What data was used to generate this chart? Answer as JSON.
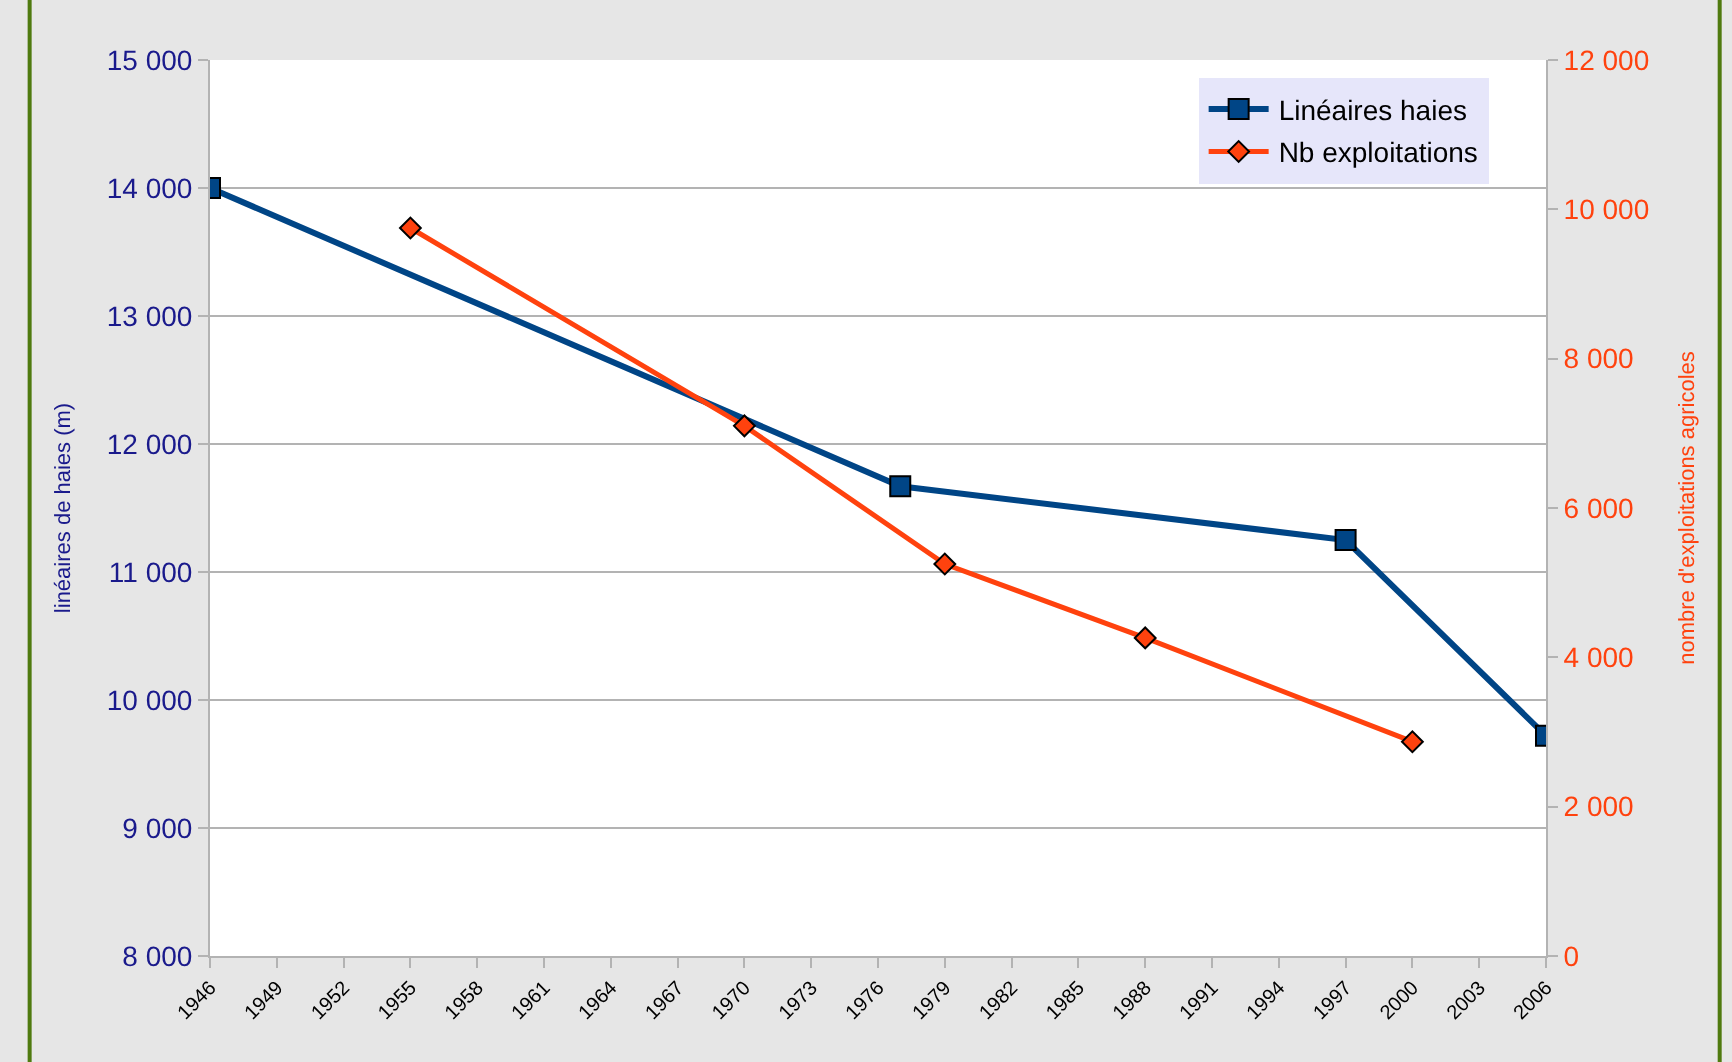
{
  "chart_data": {
    "type": "line",
    "ylabel": "linéaires de haies (m)",
    "y2label": "nombre d'exploitations agricoles",
    "series": [
      {
        "name": "Linéaires haies",
        "color": "#004586",
        "marker": "square",
        "x": [
          1946,
          1977,
          1997,
          2006
        ],
        "values": [
          14000,
          11670,
          11250,
          9720
        ]
      },
      {
        "name": "Nb exploitations",
        "color": "#ff420e",
        "marker": "diamond",
        "axis": "y2",
        "x": [
          1955,
          1970,
          1979,
          1988,
          2000
        ],
        "values": [
          9750,
          7100,
          5250,
          4260,
          2870
        ]
      }
    ],
    "xlim": [
      1946,
      2006
    ],
    "xticks": [
      1946,
      1949,
      1952,
      1955,
      1958,
      1961,
      1964,
      1967,
      1970,
      1973,
      1976,
      1979,
      1982,
      1985,
      1988,
      1991,
      1994,
      1997,
      2000,
      2003,
      2006
    ],
    "ylim": [
      8000,
      15000
    ],
    "yticks": [
      {
        "value": 8000,
        "label": "8 000"
      },
      {
        "value": 9000,
        "label": "9 000"
      },
      {
        "value": 10000,
        "label": "10 000"
      },
      {
        "value": 11000,
        "label": "11 000"
      },
      {
        "value": 12000,
        "label": "12 000"
      },
      {
        "value": 13000,
        "label": "13 000"
      },
      {
        "value": 14000,
        "label": "14 000"
      },
      {
        "value": 15000,
        "label": "15 000"
      }
    ],
    "y2lim": [
      0,
      12000
    ],
    "y2ticks": [
      0,
      {
        "value": 2000,
        "label": "2 000"
      },
      {
        "value": 4000,
        "label": "4 000"
      },
      {
        "value": 6000,
        "label": "6 000"
      },
      {
        "value": 8000,
        "label": "8 000"
      },
      {
        "value": 10000,
        "label": "10 000"
      },
      {
        "value": 12000,
        "label": "12 000"
      }
    ],
    "grid": "y",
    "legend": "top right",
    "line_style": "solid"
  }
}
